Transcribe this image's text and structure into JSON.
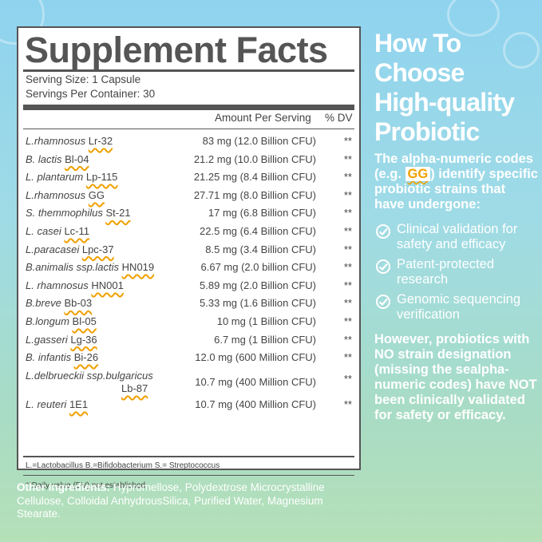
{
  "facts": {
    "title": "Supplement Facts",
    "serving_size": "Serving Size: 1 Capsule",
    "servings_per_container": "Servings Per Container: 30",
    "col_amount": "Amount Per Serving",
    "col_dv": "% DV",
    "rows": [
      {
        "name": "L.rhamnosus",
        "code": "Lr-32",
        "amount": "83 mg (12.0 Billion CFU)",
        "dv": "**"
      },
      {
        "name": "B. lactis",
        "code": "Bl-04",
        "amount": "21.2 mg (10.0 Billion CFU)",
        "dv": "**"
      },
      {
        "name": "L. plantarum",
        "code": "Lp-115",
        "amount": "21.25 mg (8.4 Billion CFU)",
        "dv": "**"
      },
      {
        "name": "L.rhamnosus",
        "code": "GG",
        "amount": "27.71 mg (8.0 Billion CFU)",
        "dv": "**"
      },
      {
        "name": "S. themmophilus",
        "code": "St-21",
        "amount": "17 mg (6.8 Billion CFU)",
        "dv": "**"
      },
      {
        "name": "L. casei",
        "code": "Lc-11",
        "amount": "22.5 mg (6.4 Billion CFU)",
        "dv": "**"
      },
      {
        "name": "L.paracasei",
        "code": "Lpc-37",
        "amount": "8.5 mg (3.4 Billion CFU)",
        "dv": "**"
      },
      {
        "name": "B.animalis ssp.lactis",
        "code": "HN019",
        "amount": "6.67 mg (2.0 billion CFU)",
        "dv": "**"
      },
      {
        "name": "L. rhamnosus",
        "code": "HN001",
        "amount": "5.89 mg (2.0 Billion CFU)",
        "dv": "**"
      },
      {
        "name": "B.breve",
        "code": "Bb-03",
        "amount": "5.33 mg (1.6 Billion CFU)",
        "dv": "**"
      },
      {
        "name": "B.longum",
        "code": "Bl-05",
        "amount": "10 mg (1 Billion CFU)",
        "dv": "**"
      },
      {
        "name": "L.gasseri",
        "code": "Lg-36",
        "amount": "6.7 mg (1 Billion CFU)",
        "dv": "**"
      },
      {
        "name": "B. infantis",
        "code": "Bi-26",
        "amount": "12.0 mg (600 Million CFU)",
        "dv": "**"
      },
      {
        "name": "L.delbrueckii ssp.bulgaricus",
        "code": "Lb-87",
        "amount": "10.7 mg (400 Million CFU)",
        "dv": "**"
      },
      {
        "name": "L. reuteri",
        "code": "1E1",
        "amount": "10.7 mg (400 Million CFU)",
        "dv": "**"
      }
    ],
    "abbreviations": "L.=Lactobacillus B.=Bifidobacterium S.= Streptococcus",
    "footnote": "**Daily value (DV) not established."
  },
  "other_ingredients": {
    "label": "Other ingredients:",
    "text": " Hypromellose, Polydextrose Microcrystalline Cellulose, Colloidal AnhydrousSilica, Purified Water, Magnesium Stearate."
  },
  "side": {
    "headline_lines": [
      "How To",
      "Choose",
      "High-quality",
      "Probiotic"
    ],
    "intro_before": "The alpha-numeric codes (e.g. ",
    "intro_code": "GG",
    "intro_after": ") identify specific probiotic strains that have undergone:",
    "checks": [
      {
        "icon": "check-circle-icon",
        "text": "Clinical validation for safety and efficacy"
      },
      {
        "icon": "check-circle-icon",
        "text": "Patent-protected research"
      },
      {
        "icon": "check-circle-icon",
        "text": "Genomic sequencing verification"
      }
    ],
    "however": "However, probiotics with NO strain designation (missing the sealpha-numeric codes) have NOT been clinically validated for safety or efficacy."
  }
}
